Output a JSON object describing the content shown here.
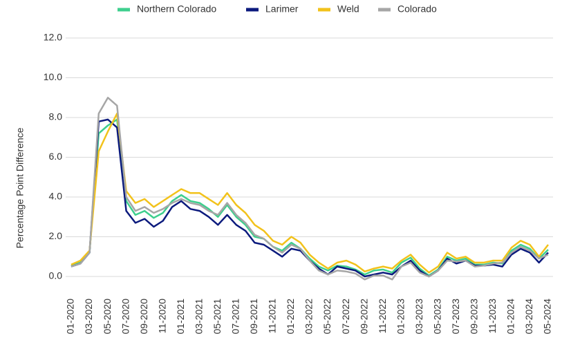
{
  "chart_data": {
    "type": "line",
    "ylabel": "Percentage Point Difference",
    "categories": [
      "01-2020",
      null,
      "03-2020",
      null,
      "05-2020",
      null,
      "07-2020",
      null,
      "09-2020",
      null,
      "11-2020",
      null,
      "01-2021",
      null,
      "03-2021",
      null,
      "05-2021",
      null,
      "07-2021",
      null,
      "09-2021",
      null,
      "11-2021",
      null,
      "01-2022",
      null,
      "03-2022",
      null,
      "05-2022",
      null,
      "07-2022",
      null,
      "09-2022",
      null,
      "11-2022",
      null,
      "01-2023",
      null,
      "03-2023",
      null,
      "05-2023",
      null,
      "07-2023",
      null,
      "09-2023",
      null,
      "11-2023",
      null,
      "01-2024",
      null,
      "03-2024",
      null,
      "05-2024"
    ],
    "series": [
      {
        "name": "Northern Colorado",
        "color": "#3ecf8e",
        "values": [
          0.55,
          0.7,
          1.2,
          7.2,
          7.6,
          7.9,
          3.8,
          3.1,
          3.3,
          2.95,
          3.2,
          3.8,
          4.1,
          3.8,
          3.7,
          3.4,
          3.0,
          3.6,
          3.0,
          2.6,
          2.0,
          1.9,
          1.5,
          1.3,
          1.7,
          1.4,
          0.9,
          0.5,
          0.3,
          0.55,
          0.5,
          0.35,
          0.1,
          0.3,
          0.35,
          0.2,
          0.7,
          0.95,
          0.4,
          0.05,
          0.35,
          1.0,
          0.8,
          0.9,
          0.6,
          0.6,
          0.7,
          0.65,
          1.3,
          1.6,
          1.4,
          0.9,
          1.35
        ]
      },
      {
        "name": "Larimer",
        "color": "#0b1a7d",
        "values": [
          0.5,
          0.65,
          1.2,
          7.8,
          7.9,
          7.5,
          3.3,
          2.7,
          2.9,
          2.5,
          2.8,
          3.5,
          3.8,
          3.4,
          3.3,
          3.0,
          2.6,
          3.1,
          2.6,
          2.3,
          1.7,
          1.6,
          1.3,
          1.0,
          1.4,
          1.3,
          0.8,
          0.4,
          0.1,
          0.5,
          0.4,
          0.3,
          0.0,
          0.1,
          0.2,
          0.1,
          0.5,
          0.8,
          0.3,
          0.0,
          0.3,
          0.9,
          0.65,
          0.8,
          0.55,
          0.55,
          0.6,
          0.5,
          1.1,
          1.4,
          1.2,
          0.7,
          1.2
        ]
      },
      {
        "name": "Weld",
        "color": "#f2c21b",
        "values": [
          0.6,
          0.8,
          1.3,
          6.3,
          7.3,
          8.2,
          4.3,
          3.7,
          3.9,
          3.5,
          3.8,
          4.1,
          4.4,
          4.2,
          4.2,
          3.9,
          3.6,
          4.2,
          3.6,
          3.2,
          2.6,
          2.3,
          1.8,
          1.6,
          2.0,
          1.7,
          1.1,
          0.7,
          0.4,
          0.7,
          0.8,
          0.6,
          0.25,
          0.4,
          0.5,
          0.4,
          0.8,
          1.1,
          0.6,
          0.2,
          0.5,
          1.2,
          0.9,
          1.0,
          0.7,
          0.7,
          0.8,
          0.8,
          1.45,
          1.8,
          1.6,
          1.0,
          1.6
        ]
      },
      {
        "name": "Colorado",
        "color": "#a6a6a6",
        "values": [
          0.5,
          0.65,
          1.2,
          8.2,
          9.0,
          8.6,
          4.0,
          3.3,
          3.5,
          3.2,
          3.4,
          3.7,
          3.9,
          3.7,
          3.6,
          3.3,
          3.1,
          3.7,
          3.1,
          2.7,
          2.1,
          1.9,
          1.5,
          1.2,
          1.6,
          1.4,
          0.8,
          0.3,
          0.1,
          0.3,
          0.25,
          0.15,
          -0.15,
          0.05,
          0.05,
          -0.15,
          0.5,
          0.7,
          0.2,
          0.0,
          0.3,
          0.8,
          0.75,
          0.8,
          0.5,
          0.55,
          0.65,
          0.7,
          1.2,
          1.5,
          1.3,
          0.9,
          1.1
        ]
      }
    ],
    "ylim": [
      0,
      12
    ],
    "yticks": [
      {
        "value": 0,
        "label": "0.0"
      },
      {
        "value": 2,
        "label": "2.0"
      },
      {
        "value": 4,
        "label": "4.0"
      },
      {
        "value": 6,
        "label": "6.0"
      },
      {
        "value": 8,
        "label": "8.0"
      },
      {
        "value": 10,
        "label": "10.0"
      },
      {
        "value": 12,
        "label": "12.0"
      }
    ],
    "grid": true
  }
}
